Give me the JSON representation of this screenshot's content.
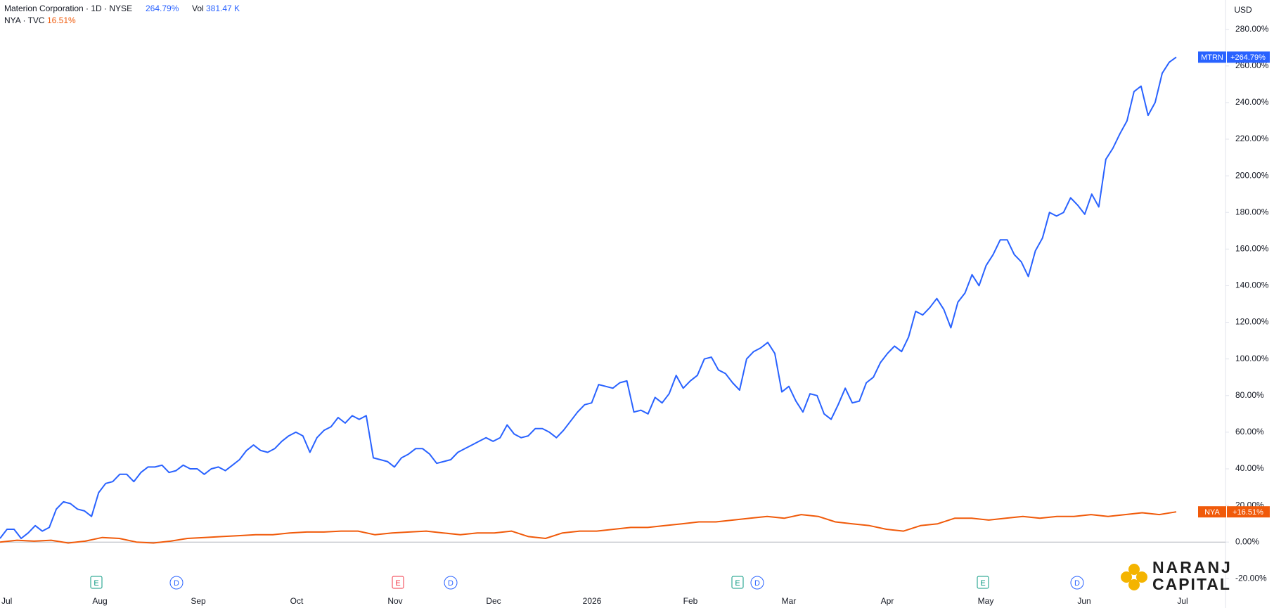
{
  "chart_data": {
    "type": "line",
    "header": {
      "symbol": "Materion Corporation · 1D · NYSE",
      "change": "264.79%",
      "vol_label": "Vol",
      "vol": "381.47 K",
      "compare": "NYA · TVC",
      "compare_change": "16.51%"
    },
    "currency": "USD",
    "x_labels": [
      "Jul",
      "Aug",
      "Sep",
      "Oct",
      "Nov",
      "Dec",
      "2026",
      "Feb",
      "Mar",
      "Apr",
      "May",
      "Jun",
      "Jul"
    ],
    "series": [
      {
        "name": "MTRN",
        "color": "#2962ff",
        "tag_label": "+264.79%",
        "values": [
          2,
          7,
          7,
          2,
          5,
          9,
          6,
          8,
          18,
          22,
          21,
          18,
          17,
          14,
          27,
          32,
          33,
          37,
          37,
          33,
          38,
          41,
          41,
          42,
          38,
          39,
          42,
          40,
          40,
          37,
          40,
          41,
          39,
          42,
          45,
          50,
          53,
          50,
          49,
          51,
          55,
          58,
          60,
          58,
          49,
          57,
          61,
          63,
          68,
          65,
          69,
          67,
          69,
          46,
          45,
          44,
          41,
          46,
          48,
          51,
          51,
          48,
          43,
          44,
          45,
          49,
          51,
          53,
          55,
          57,
          55,
          57,
          64,
          59,
          57,
          58,
          62,
          62,
          60,
          57,
          61,
          66,
          71,
          75,
          76,
          86,
          85,
          84,
          87,
          88,
          71,
          72,
          70,
          79,
          76,
          81,
          91,
          84,
          88,
          91,
          100,
          101,
          94,
          92,
          87,
          83,
          100,
          104,
          106,
          109,
          103,
          82,
          85,
          77,
          71,
          81,
          80,
          70,
          67,
          75,
          84,
          76,
          77,
          87,
          90,
          98,
          103,
          107,
          104,
          112,
          126,
          124,
          128,
          133,
          127,
          117,
          131,
          136,
          146,
          140,
          151,
          157,
          165,
          165,
          157,
          153,
          145,
          159,
          166,
          180,
          178,
          180,
          188,
          184,
          179,
          190,
          183,
          209,
          215,
          223,
          230,
          246,
          249,
          233,
          240,
          256,
          262,
          264.79
        ]
      },
      {
        "name": "NYA",
        "color": "#f05a0a",
        "tag_label": "+16.51%",
        "values": [
          0,
          1,
          0.5,
          1,
          -0.5,
          0.5,
          2.5,
          2,
          0,
          -0.5,
          0.5,
          2,
          2.5,
          3,
          3.5,
          4,
          4,
          5,
          5.5,
          5.5,
          6,
          6,
          4,
          5,
          5.5,
          6,
          5,
          4,
          5,
          5,
          6,
          3,
          2,
          5,
          6,
          6,
          7,
          8,
          8,
          9,
          10,
          11,
          11,
          12,
          13,
          14,
          13,
          15,
          14,
          11,
          10,
          9,
          7,
          6,
          9,
          10,
          13,
          13,
          12,
          13,
          14,
          13,
          14,
          14,
          15,
          14,
          15,
          16,
          15,
          16.51
        ]
      }
    ],
    "ylim": [
      -36,
      296
    ],
    "yticks": [
      {
        "value": -20,
        "label": "-20.00%"
      },
      {
        "value": 0,
        "label": "0.00%"
      },
      {
        "value": 20,
        "label": "20.00%"
      },
      {
        "value": 40,
        "label": "40.00%"
      },
      {
        "value": 60,
        "label": "60.00%"
      },
      {
        "value": 80,
        "label": "80.00%"
      },
      {
        "value": 100,
        "label": "100.00%"
      },
      {
        "value": 120,
        "label": "120.00%"
      },
      {
        "value": 140,
        "label": "140.00%"
      },
      {
        "value": 160,
        "label": "160.00%"
      },
      {
        "value": 180,
        "label": "180.00%"
      },
      {
        "value": 200,
        "label": "200.00%"
      },
      {
        "value": 220,
        "label": "220.00%"
      },
      {
        "value": 240,
        "label": "240.00%"
      },
      {
        "value": 260,
        "label": "260.00%"
      },
      {
        "value": 280,
        "label": "280.00%"
      }
    ],
    "events": [
      "E",
      "D",
      "E",
      "D",
      "E",
      "D",
      "E",
      "D"
    ],
    "logo": [
      "NARANJ",
      "CAPITAL"
    ]
  }
}
